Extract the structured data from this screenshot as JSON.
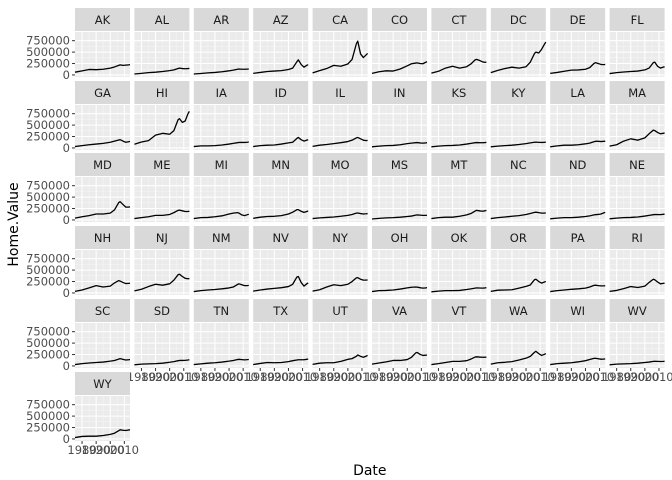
{
  "chart_data": {
    "type": "line",
    "facet_wrap": true,
    "xlabel": "Date",
    "ylabel": "Home.Value",
    "x_ticks": [
      1980,
      1990,
      2000,
      2010
    ],
    "x_tick_labels": [
      "1980",
      "1990",
      "2000",
      "2010"
    ],
    "xlim": [
      1975,
      2014
    ],
    "y_ticks": [
      0,
      250000,
      500000,
      750000
    ],
    "y_tick_labels": [
      "0",
      "250000",
      "500000",
      "750000"
    ],
    "ylim": [
      -45000,
      940000
    ],
    "grid": true,
    "years": [
      1975,
      1980,
      1985,
      1990,
      1995,
      2000,
      2003,
      2006,
      2007,
      2009,
      2011,
      2013,
      2014
    ],
    "series": [
      {
        "name": "AK",
        "values": [
          60000,
          90000,
          120000,
          115000,
          125000,
          150000,
          175000,
          210000,
          220000,
          210000,
          215000,
          220000,
          225000
        ]
      },
      {
        "name": "AL",
        "values": [
          20000,
          35000,
          50000,
          60000,
          75000,
          95000,
          110000,
          140000,
          150000,
          140000,
          135000,
          140000,
          142000
        ]
      },
      {
        "name": "AR",
        "values": [
          20000,
          32000,
          45000,
          55000,
          70000,
          90000,
          105000,
          125000,
          130000,
          125000,
          125000,
          128000,
          130000
        ]
      },
      {
        "name": "AZ",
        "values": [
          35000,
          55000,
          75000,
          85000,
          95000,
          120000,
          150000,
          290000,
          330000,
          230000,
          170000,
          210000,
          225000
        ]
      },
      {
        "name": "CA",
        "values": [
          45000,
          95000,
          140000,
          210000,
          190000,
          240000,
          340000,
          680000,
          740000,
          460000,
          380000,
          440000,
          470000
        ]
      },
      {
        "name": "CO",
        "values": [
          35000,
          70000,
          90000,
          85000,
          130000,
          200000,
          245000,
          260000,
          265000,
          250000,
          245000,
          275000,
          290000
        ]
      },
      {
        "name": "CT",
        "values": [
          40000,
          80000,
          150000,
          190000,
          150000,
          180000,
          240000,
          330000,
          340000,
          320000,
          290000,
          275000,
          280000
        ]
      },
      {
        "name": "DC",
        "values": [
          50000,
          100000,
          140000,
          170000,
          150000,
          180000,
          280000,
          470000,
          500000,
          480000,
          560000,
          670000,
          720000
        ]
      },
      {
        "name": "DE",
        "values": [
          35000,
          55000,
          80000,
          105000,
          110000,
          125000,
          160000,
          250000,
          270000,
          250000,
          230000,
          225000,
          230000
        ]
      },
      {
        "name": "FL",
        "values": [
          30000,
          50000,
          65000,
          75000,
          85000,
          110000,
          150000,
          270000,
          280000,
          190000,
          150000,
          170000,
          180000
        ]
      },
      {
        "name": "GA",
        "values": [
          30000,
          50000,
          70000,
          85000,
          100000,
          125000,
          150000,
          175000,
          180000,
          150000,
          125000,
          135000,
          145000
        ]
      },
      {
        "name": "HI",
        "values": [
          80000,
          130000,
          160000,
          280000,
          320000,
          300000,
          380000,
          620000,
          640000,
          560000,
          590000,
          750000,
          800000
        ]
      },
      {
        "name": "IA",
        "values": [
          30000,
          45000,
          45000,
          50000,
          65000,
          85000,
          100000,
          115000,
          120000,
          120000,
          120000,
          125000,
          130000
        ]
      },
      {
        "name": "ID",
        "values": [
          30000,
          50000,
          60000,
          65000,
          85000,
          110000,
          125000,
          210000,
          230000,
          180000,
          150000,
          170000,
          180000
        ]
      },
      {
        "name": "IL",
        "values": [
          35000,
          60000,
          75000,
          95000,
          115000,
          140000,
          170000,
          220000,
          230000,
          200000,
          170000,
          160000,
          165000
        ]
      },
      {
        "name": "IN",
        "values": [
          25000,
          40000,
          50000,
          55000,
          70000,
          95000,
          105000,
          115000,
          118000,
          110000,
          105000,
          110000,
          115000
        ]
      },
      {
        "name": "KS",
        "values": [
          25000,
          40000,
          50000,
          55000,
          65000,
          85000,
          100000,
          115000,
          118000,
          115000,
          113000,
          118000,
          122000
        ]
      },
      {
        "name": "KY",
        "values": [
          25000,
          40000,
          50000,
          60000,
          75000,
          95000,
          110000,
          125000,
          128000,
          122000,
          120000,
          123000,
          127000
        ]
      },
      {
        "name": "LA",
        "values": [
          25000,
          45000,
          60000,
          60000,
          70000,
          90000,
          105000,
          135000,
          145000,
          145000,
          140000,
          145000,
          148000
        ]
      },
      {
        "name": "MA",
        "values": [
          40000,
          70000,
          150000,
          200000,
          170000,
          220000,
          310000,
          390000,
          380000,
          340000,
          310000,
          320000,
          330000
        ]
      },
      {
        "name": "MD",
        "values": [
          40000,
          70000,
          95000,
          130000,
          130000,
          150000,
          220000,
          380000,
          400000,
          340000,
          280000,
          280000,
          290000
        ]
      },
      {
        "name": "ME",
        "values": [
          30000,
          50000,
          70000,
          100000,
          100000,
          120000,
          160000,
          210000,
          215000,
          200000,
          185000,
          185000,
          190000
        ]
      },
      {
        "name": "MI",
        "values": [
          30000,
          50000,
          55000,
          70000,
          90000,
          130000,
          150000,
          160000,
          150000,
          110000,
          95000,
          115000,
          125000
        ]
      },
      {
        "name": "MN",
        "values": [
          35000,
          60000,
          75000,
          80000,
          95000,
          130000,
          170000,
          225000,
          225000,
          190000,
          165000,
          185000,
          195000
        ]
      },
      {
        "name": "MO",
        "values": [
          30000,
          45000,
          55000,
          65000,
          80000,
          100000,
          120000,
          150000,
          152000,
          140000,
          130000,
          135000,
          140000
        ]
      },
      {
        "name": "MS",
        "values": [
          20000,
          35000,
          45000,
          50000,
          60000,
          75000,
          85000,
          105000,
          110000,
          105000,
          100000,
          100000,
          102000
        ]
      },
      {
        "name": "MT",
        "values": [
          30000,
          50000,
          60000,
          60000,
          80000,
          110000,
          140000,
          195000,
          210000,
          200000,
          190000,
          200000,
          210000
        ]
      },
      {
        "name": "NC",
        "values": [
          30000,
          50000,
          65000,
          80000,
          95000,
          120000,
          140000,
          165000,
          170000,
          160000,
          150000,
          150000,
          155000
        ]
      },
      {
        "name": "ND",
        "values": [
          25000,
          40000,
          50000,
          50000,
          60000,
          75000,
          90000,
          110000,
          115000,
          120000,
          130000,
          155000,
          165000
        ]
      },
      {
        "name": "NE",
        "values": [
          25000,
          40000,
          50000,
          55000,
          65000,
          85000,
          100000,
          115000,
          118000,
          118000,
          117000,
          123000,
          128000
        ]
      },
      {
        "name": "NH",
        "values": [
          35000,
          65000,
          110000,
          160000,
          130000,
          150000,
          220000,
          270000,
          260000,
          230000,
          205000,
          210000,
          215000
        ]
      },
      {
        "name": "NJ",
        "values": [
          45000,
          80000,
          140000,
          190000,
          170000,
          200000,
          280000,
          400000,
          410000,
          360000,
          320000,
          310000,
          315000
        ]
      },
      {
        "name": "NM",
        "values": [
          30000,
          50000,
          65000,
          75000,
          90000,
          110000,
          130000,
          185000,
          200000,
          180000,
          160000,
          160000,
          165000
        ]
      },
      {
        "name": "NV",
        "values": [
          40000,
          65000,
          85000,
          100000,
          115000,
          140000,
          190000,
          350000,
          360000,
          230000,
          150000,
          200000,
          220000
        ]
      },
      {
        "name": "NY",
        "values": [
          40000,
          70000,
          130000,
          180000,
          160000,
          190000,
          250000,
          330000,
          335000,
          300000,
          280000,
          280000,
          285000
        ]
      },
      {
        "name": "OH",
        "values": [
          30000,
          50000,
          55000,
          65000,
          85000,
          110000,
          125000,
          130000,
          128000,
          115000,
          105000,
          110000,
          115000
        ]
      },
      {
        "name": "OK",
        "values": [
          25000,
          40000,
          50000,
          50000,
          55000,
          75000,
          90000,
          105000,
          110000,
          108000,
          105000,
          110000,
          115000
        ]
      },
      {
        "name": "OR",
        "values": [
          35000,
          60000,
          65000,
          70000,
          105000,
          145000,
          175000,
          290000,
          300000,
          250000,
          215000,
          240000,
          250000
        ]
      },
      {
        "name": "PA",
        "values": [
          30000,
          50000,
          65000,
          80000,
          90000,
          105000,
          130000,
          165000,
          170000,
          160000,
          155000,
          155000,
          157000
        ]
      },
      {
        "name": "RI",
        "values": [
          35000,
          55000,
          95000,
          140000,
          120000,
          150000,
          230000,
          300000,
          290000,
          240000,
          200000,
          210000,
          215000
        ]
      },
      {
        "name": "SC",
        "values": [
          30000,
          50000,
          65000,
          75000,
          85000,
          105000,
          120000,
          150000,
          160000,
          145000,
          130000,
          135000,
          140000
        ]
      },
      {
        "name": "SD",
        "values": [
          25000,
          40000,
          45000,
          50000,
          60000,
          80000,
          95000,
          115000,
          120000,
          120000,
          122000,
          130000,
          135000
        ]
      },
      {
        "name": "TN",
        "values": [
          30000,
          45000,
          60000,
          70000,
          85000,
          105000,
          120000,
          140000,
          145000,
          138000,
          132000,
          138000,
          142000
        ]
      },
      {
        "name": "TX",
        "values": [
          30000,
          55000,
          75000,
          70000,
          75000,
          95000,
          115000,
          130000,
          135000,
          135000,
          135000,
          145000,
          152000
        ]
      },
      {
        "name": "UT",
        "values": [
          35000,
          60000,
          70000,
          70000,
          100000,
          145000,
          160000,
          210000,
          240000,
          210000,
          190000,
          215000,
          230000
        ]
      },
      {
        "name": "VA",
        "values": [
          40000,
          65000,
          90000,
          120000,
          120000,
          140000,
          190000,
          285000,
          295000,
          255000,
          230000,
          235000,
          240000
        ]
      },
      {
        "name": "VT",
        "values": [
          30000,
          50000,
          75000,
          100000,
          100000,
          115000,
          150000,
          195000,
          200000,
          195000,
          190000,
          190000,
          192000
        ]
      },
      {
        "name": "WA",
        "values": [
          40000,
          70000,
          80000,
          95000,
          130000,
          170000,
          210000,
          300000,
          320000,
          270000,
          230000,
          255000,
          270000
        ]
      },
      {
        "name": "WI",
        "values": [
          30000,
          50000,
          60000,
          70000,
          90000,
          115000,
          140000,
          165000,
          168000,
          158000,
          148000,
          150000,
          155000
        ]
      },
      {
        "name": "WV",
        "values": [
          25000,
          40000,
          45000,
          50000,
          60000,
          75000,
          85000,
          100000,
          103000,
          100000,
          98000,
          100000,
          102000
        ]
      },
      {
        "name": "WY",
        "values": [
          30000,
          55000,
          60000,
          60000,
          75000,
          100000,
          125000,
          180000,
          200000,
          190000,
          185000,
          195000,
          200000
        ]
      }
    ]
  }
}
